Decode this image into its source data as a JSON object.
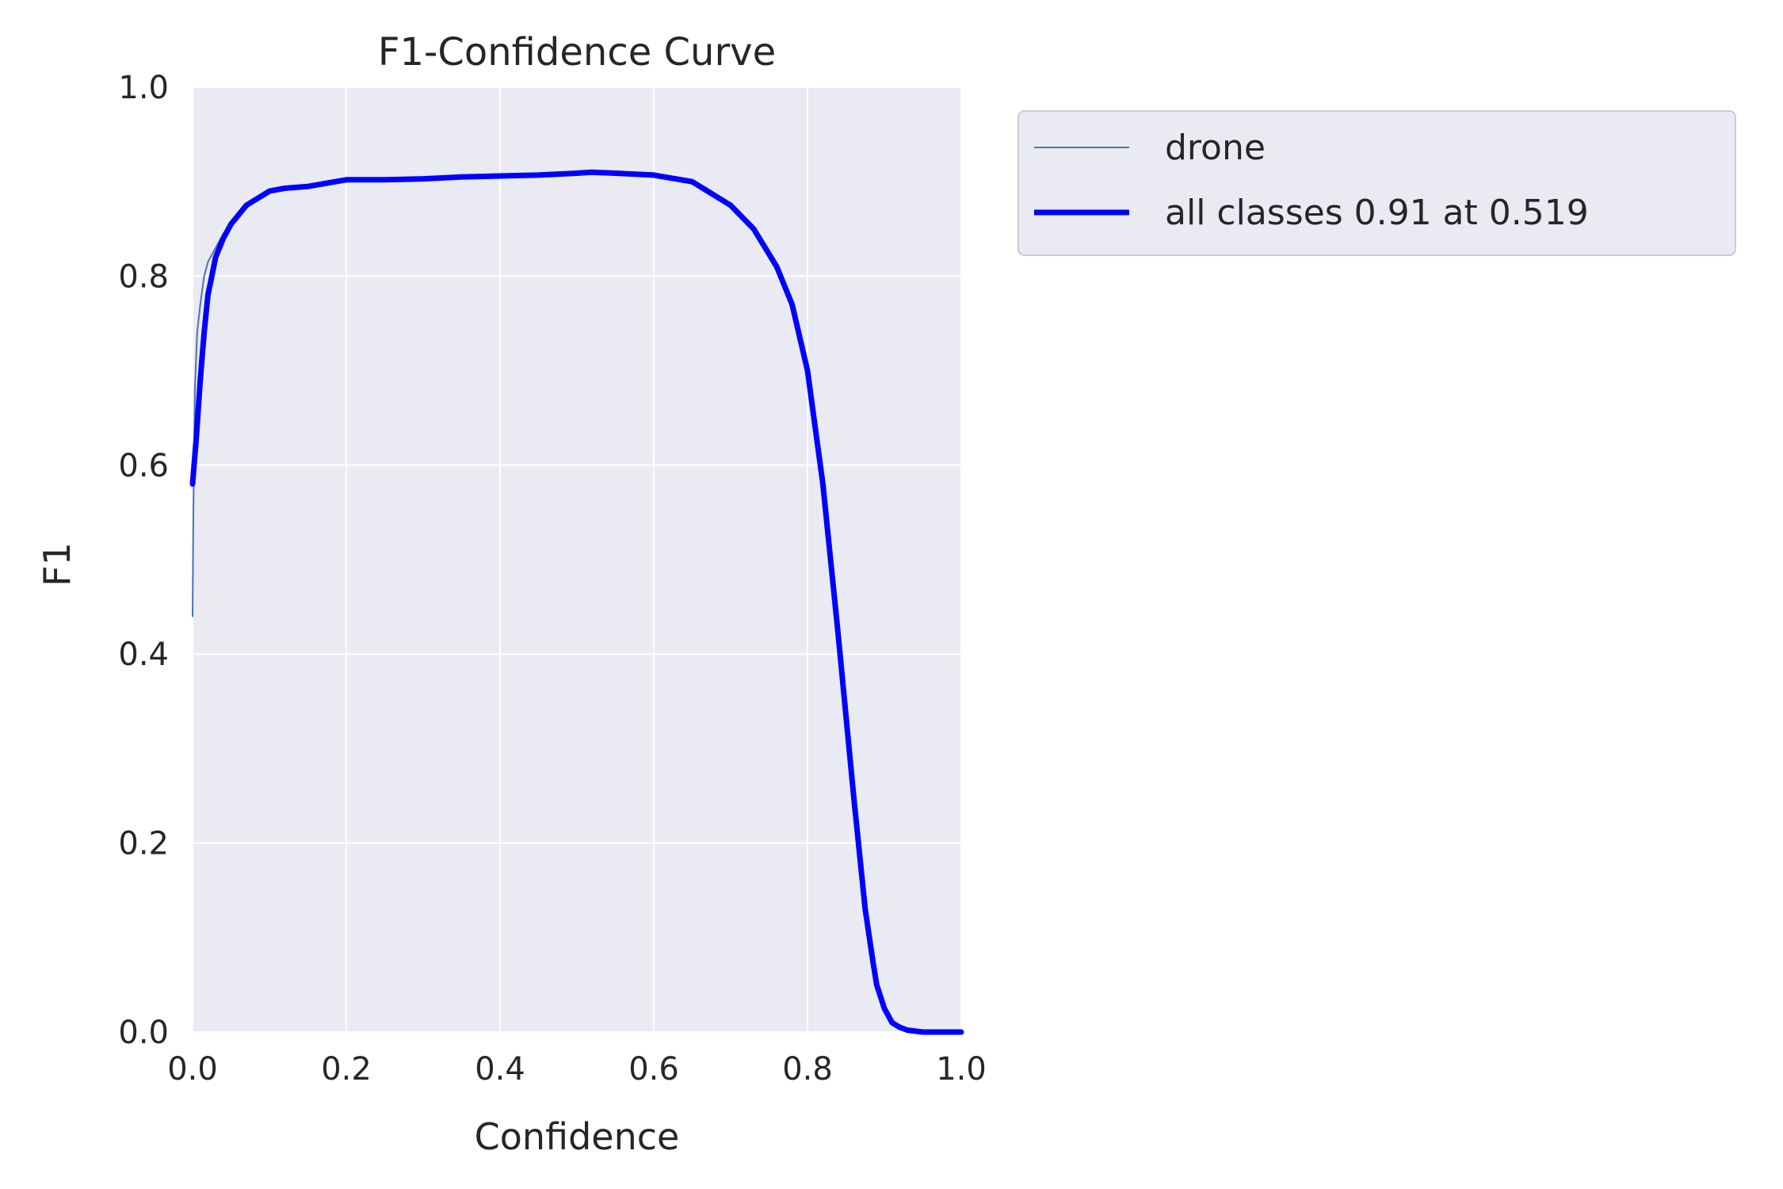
{
  "chart_data": {
    "type": "line",
    "title": "F1-Confidence Curve",
    "xlabel": "Confidence",
    "ylabel": "F1",
    "xlim": [
      0,
      1
    ],
    "ylim": [
      0,
      1
    ],
    "xticks": [
      "0.0",
      "0.2",
      "0.4",
      "0.6",
      "0.8",
      "1.0"
    ],
    "yticks": [
      "0.0",
      "0.2",
      "0.4",
      "0.6",
      "0.8",
      "1.0"
    ],
    "grid": true,
    "legend_position": "outside-upper-right",
    "colors": {
      "plot_background": "#eaeaf2",
      "grid": "#ffffff",
      "drone": "#4c72b0",
      "all_classes": "#0000ff"
    },
    "series": [
      {
        "name": "drone",
        "x": [
          0.0,
          0.001,
          0.003,
          0.006,
          0.01,
          0.015,
          0.02,
          0.03,
          0.04,
          0.05,
          0.07,
          0.1,
          0.12,
          0.15,
          0.2,
          0.25,
          0.3,
          0.35,
          0.4,
          0.45,
          0.5,
          0.519,
          0.55,
          0.6,
          0.65,
          0.7,
          0.73,
          0.76,
          0.78,
          0.8,
          0.82,
          0.84,
          0.86,
          0.875,
          0.88,
          0.885,
          0.89,
          0.9,
          0.91,
          0.92,
          0.93,
          0.95,
          1.0
        ],
        "y": [
          0.44,
          0.55,
          0.68,
          0.74,
          0.77,
          0.8,
          0.815,
          0.83,
          0.845,
          0.855,
          0.875,
          0.89,
          0.893,
          0.895,
          0.902,
          0.902,
          0.903,
          0.905,
          0.906,
          0.907,
          0.909,
          0.91,
          0.909,
          0.907,
          0.9,
          0.875,
          0.85,
          0.81,
          0.77,
          0.7,
          0.58,
          0.42,
          0.25,
          0.14,
          0.11,
          0.065,
          0.045,
          0.022,
          0.01,
          0.005,
          0.002,
          0.0,
          0.0
        ]
      },
      {
        "name": "all classes 0.91 at 0.519",
        "x": [
          0.0,
          0.005,
          0.01,
          0.015,
          0.02,
          0.025,
          0.03,
          0.04,
          0.05,
          0.07,
          0.1,
          0.12,
          0.15,
          0.2,
          0.25,
          0.3,
          0.35,
          0.4,
          0.45,
          0.5,
          0.519,
          0.55,
          0.6,
          0.65,
          0.7,
          0.73,
          0.76,
          0.78,
          0.8,
          0.82,
          0.84,
          0.86,
          0.875,
          0.885,
          0.89,
          0.9,
          0.91,
          0.92,
          0.93,
          0.95,
          1.0
        ],
        "y": [
          0.58,
          0.63,
          0.69,
          0.74,
          0.78,
          0.8,
          0.82,
          0.84,
          0.855,
          0.875,
          0.89,
          0.893,
          0.895,
          0.902,
          0.902,
          0.903,
          0.905,
          0.906,
          0.907,
          0.909,
          0.91,
          0.909,
          0.907,
          0.9,
          0.875,
          0.85,
          0.81,
          0.77,
          0.7,
          0.58,
          0.42,
          0.25,
          0.13,
          0.075,
          0.05,
          0.025,
          0.01,
          0.005,
          0.002,
          0.0,
          0.0
        ]
      }
    ]
  }
}
